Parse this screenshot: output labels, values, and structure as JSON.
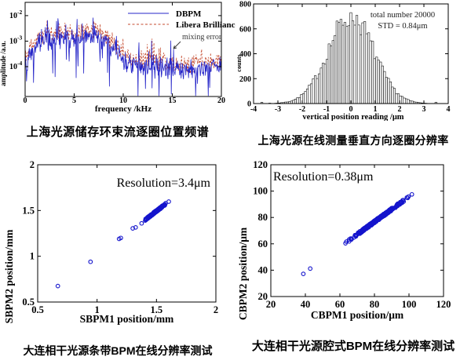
{
  "colors": {
    "dbpm_blue": "#2424c8",
    "libera_red": "#c44a2e",
    "scatter_blue": "#1414cc",
    "axis": "#000000",
    "annotation_gray": "#3a3a3a",
    "background": "#ffffff"
  },
  "chart_data": [
    {
      "id": "spectrum",
      "type": "line",
      "caption": "上海光源储存环束流逐圈位置频谱",
      "xlabel": "frequency /kHz",
      "ylabel": "amplitude /a.u.",
      "xlim": [
        0,
        20
      ],
      "xticks": [
        0,
        5,
        10,
        15,
        20
      ],
      "yscale": "log",
      "ylim_exp": [
        -5.17,
        -1.48
      ],
      "ytick_exp": [
        -2,
        -3,
        -4
      ],
      "grid": false,
      "legend_position": "top-right-inside",
      "legend": [
        {
          "label": "DBPM",
          "style": "solid",
          "color_key": "dbpm_blue"
        },
        {
          "label": "Libera Brilliance",
          "style": "dashed",
          "color_key": "libera_red"
        }
      ],
      "annotation": {
        "text": "mixing error",
        "points_to_khz": 14.85
      },
      "gen": {
        "seed": 42,
        "n": 420,
        "envelope": [
          [
            0,
            -3.75
          ],
          [
            0.4,
            -3.4
          ],
          [
            1,
            -3.1
          ],
          [
            2,
            -2.78
          ],
          [
            3,
            -2.8
          ],
          [
            4,
            -2.72
          ],
          [
            5,
            -2.8
          ],
          [
            6,
            -2.7
          ],
          [
            7,
            -2.62
          ],
          [
            7.6,
            -2.75
          ],
          [
            8.4,
            -2.95
          ],
          [
            9.2,
            -3.2
          ],
          [
            10,
            -3.6
          ],
          [
            11,
            -3.78
          ],
          [
            12,
            -3.82
          ],
          [
            13,
            -3.78
          ],
          [
            14,
            -3.88
          ],
          [
            15,
            -3.95
          ],
          [
            16,
            -4.0
          ],
          [
            17,
            -3.95
          ],
          [
            18,
            -3.9
          ],
          [
            19,
            -3.95
          ],
          [
            20,
            -3.85
          ]
        ],
        "blue_peaks": [
          [
            2.3,
            -2.18
          ],
          [
            3.4,
            -2.28
          ],
          [
            4.15,
            -2.35
          ],
          [
            5.8,
            -2.3
          ],
          [
            6.9,
            -2.08
          ],
          [
            9.3,
            -2.8
          ],
          [
            11.6,
            -3.05
          ],
          [
            12.9,
            -2.98
          ],
          [
            14.85,
            -2.98
          ]
        ],
        "red_peaks": [
          [
            2.25,
            -2.2
          ],
          [
            3.5,
            -2.32
          ],
          [
            5.9,
            -2.38
          ],
          [
            7.05,
            -2.28
          ],
          [
            12.95,
            -2.9
          ]
        ]
      }
    },
    {
      "id": "histogram",
      "type": "bar",
      "caption": "上海光源在线测量垂直方向逐圈分辨率",
      "xlabel": "vertical position reading /μm",
      "ylabel": "counts",
      "xlim": [
        -4,
        4
      ],
      "xticks": [
        -4,
        -3,
        -2,
        -1,
        0,
        1,
        2,
        3,
        4
      ],
      "ylim": [
        0,
        800
      ],
      "yticks": [
        0,
        200,
        400,
        600,
        800
      ],
      "grid": false,
      "bar_fill": "#ffffff",
      "annotation_lines": [
        "total number 20000",
        "STD = 0.84μm"
      ],
      "stats": {
        "total_number": 20000,
        "std_um": 0.84,
        "peak_count": 705,
        "center": 0
      },
      "gen": {
        "seed": 7,
        "bins": 92,
        "range": [
          -3.7,
          3.78
        ],
        "sigma": 0.93,
        "peak": 705
      }
    },
    {
      "id": "sbpm",
      "type": "scatter",
      "caption": "大连相干光源条带BPM在线分辨率测试",
      "xlabel": "SBPM1 position/mm",
      "ylabel": "SBPM2 position/mm",
      "xlim": [
        0.5,
        2
      ],
      "xticks": [
        0.5,
        1,
        1.5,
        2
      ],
      "ylim": [
        0.5,
        2
      ],
      "yticks": [
        0.5,
        1,
        1.5,
        2
      ],
      "grid": false,
      "annotation": "Resolution=3.4μm",
      "resolution_um": 3.4,
      "outliers": [
        [
          0.67,
          0.675
        ],
        [
          0.945,
          0.94
        ],
        [
          1.185,
          1.19
        ],
        [
          1.2,
          1.2
        ],
        [
          1.3,
          1.305
        ],
        [
          1.325,
          1.315
        ],
        [
          1.375,
          1.36
        ]
      ],
      "cluster": {
        "seed": 11,
        "n": 175,
        "x_range": [
          1.385,
          1.62
        ],
        "y_offset": -0.006,
        "noise": 0.018
      }
    },
    {
      "id": "cbpm",
      "type": "scatter",
      "caption": "大连相干光源腔式BPM在线分辨率测试",
      "xlabel": "CBPM1 position/μm",
      "ylabel": "CBPM2 position/μm",
      "xlim": [
        20,
        120
      ],
      "xticks": [
        20,
        40,
        60,
        80,
        100,
        120
      ],
      "ylim": [
        20,
        120
      ],
      "yticks": [
        20,
        40,
        60,
        80,
        100,
        120
      ],
      "grid": false,
      "annotation": "Resolution=0.38μm",
      "resolution_um": 0.38,
      "outliers": [
        [
          38.8,
          37.2
        ],
        [
          42.8,
          41.2
        ]
      ],
      "cluster": {
        "seed": 23,
        "n": 285,
        "x_range": [
          60.2,
          104.8
        ],
        "line": {
          "slope": 0.957,
          "intercept": 0.1
        },
        "noise": 1.8
      }
    }
  ]
}
